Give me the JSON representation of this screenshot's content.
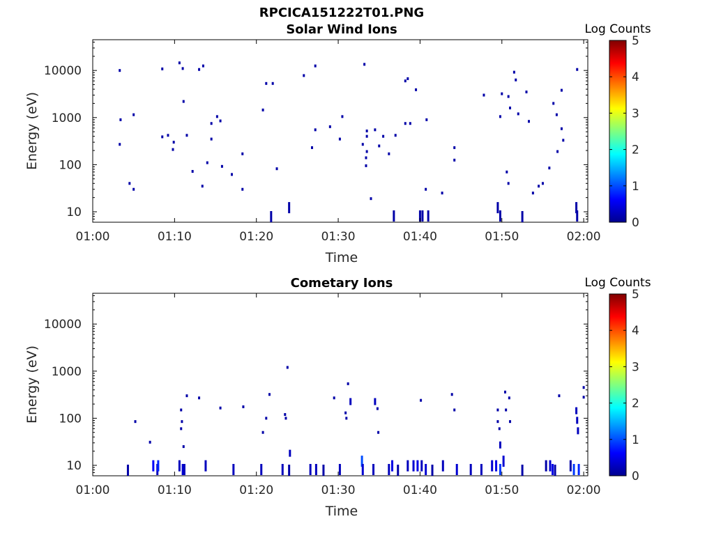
{
  "figure_title": "RPCICA151222T01.PNG",
  "chart_data": [
    {
      "type": "heatmap",
      "title": "Solar Wind Ions",
      "xlabel": "Time",
      "ylabel": "Energy (eV)",
      "x_ticks": [
        "01:00",
        "01:10",
        "01:20",
        "01:30",
        "01:40",
        "01:50",
        "02:00"
      ],
      "x_range_minutes": [
        0,
        60.5
      ],
      "y_ticks": [
        "10",
        "100",
        "1000",
        "10000"
      ],
      "y_scale": "log",
      "y_range": [
        6,
        45000
      ],
      "colorbar": {
        "label": "Log Counts",
        "ticks": [
          "0",
          "1",
          "2",
          "3",
          "4",
          "5"
        ],
        "range": [
          0,
          5
        ],
        "colormap": "jet"
      },
      "points": [
        {
          "t": 3.3,
          "e": 10000,
          "c": 0.2
        },
        {
          "t": 3.4,
          "e": 900,
          "c": 0.2
        },
        {
          "t": 3.3,
          "e": 270,
          "c": 0.2
        },
        {
          "t": 4.5,
          "e": 40,
          "c": 0.2
        },
        {
          "t": 5.0,
          "e": 30,
          "c": 0.2
        },
        {
          "t": 5.0,
          "e": 1150,
          "c": 0.2
        },
        {
          "t": 8.5,
          "e": 10800,
          "c": 0.2
        },
        {
          "t": 8.5,
          "e": 390,
          "c": 0.2
        },
        {
          "t": 9.2,
          "e": 420,
          "c": 0.2
        },
        {
          "t": 9.9,
          "e": 300,
          "c": 0.2
        },
        {
          "t": 9.8,
          "e": 210,
          "c": 0.2
        },
        {
          "t": 10.6,
          "e": 14500,
          "c": 0.2
        },
        {
          "t": 11.0,
          "e": 11000,
          "c": 0.2
        },
        {
          "t": 11.1,
          "e": 2200,
          "c": 0.2
        },
        {
          "t": 11.5,
          "e": 420,
          "c": 0.2
        },
        {
          "t": 12.2,
          "e": 72,
          "c": 0.2
        },
        {
          "t": 13.0,
          "e": 10500,
          "c": 0.2
        },
        {
          "t": 13.5,
          "e": 12500,
          "c": 0.2
        },
        {
          "t": 13.4,
          "e": 35,
          "c": 0.2
        },
        {
          "t": 14.0,
          "e": 110,
          "c": 0.2
        },
        {
          "t": 14.5,
          "e": 750,
          "c": 0.2
        },
        {
          "t": 14.5,
          "e": 350,
          "c": 0.2
        },
        {
          "t": 15.2,
          "e": 1050,
          "c": 0.2
        },
        {
          "t": 15.6,
          "e": 850,
          "c": 0.2
        },
        {
          "t": 15.8,
          "e": 92,
          "c": 0.2
        },
        {
          "t": 17.0,
          "e": 62,
          "c": 0.2
        },
        {
          "t": 18.3,
          "e": 170,
          "c": 0.2
        },
        {
          "t": 18.3,
          "e": 30,
          "c": 0.2
        },
        {
          "t": 20.8,
          "e": 1450,
          "c": 0.2
        },
        {
          "t": 21.2,
          "e": 5300,
          "c": 0.2
        },
        {
          "t": 22.0,
          "e": 5300,
          "c": 0.2
        },
        {
          "t": 22.5,
          "e": 82,
          "c": 0.2
        },
        {
          "t": 21.8,
          "e": 6,
          "c": 0.2
        },
        {
          "t": 24.0,
          "e": 15,
          "c": 0.2
        },
        {
          "t": 25.8,
          "e": 7800,
          "c": 0.2
        },
        {
          "t": 26.8,
          "e": 230,
          "c": 0.2
        },
        {
          "t": 27.2,
          "e": 12500,
          "c": 0.2
        },
        {
          "t": 27.2,
          "e": 550,
          "c": 0.2
        },
        {
          "t": 29.0,
          "e": 640,
          "c": 0.2
        },
        {
          "t": 30.2,
          "e": 350,
          "c": 0.2
        },
        {
          "t": 30.5,
          "e": 1050,
          "c": 0.2
        },
        {
          "t": 33.2,
          "e": 13500,
          "c": 0.2
        },
        {
          "t": 33.5,
          "e": 520,
          "c": 0.2
        },
        {
          "t": 33.5,
          "e": 400,
          "c": 0.2
        },
        {
          "t": 33.0,
          "e": 270,
          "c": 0.2
        },
        {
          "t": 33.5,
          "e": 190,
          "c": 0.2
        },
        {
          "t": 33.4,
          "e": 140,
          "c": 0.2
        },
        {
          "t": 33.4,
          "e": 95,
          "c": 0.2
        },
        {
          "t": 34.0,
          "e": 19,
          "c": 0.2
        },
        {
          "t": 34.5,
          "e": 550,
          "c": 0.2
        },
        {
          "t": 35.0,
          "e": 250,
          "c": 0.2
        },
        {
          "t": 35.5,
          "e": 400,
          "c": 0.2
        },
        {
          "t": 36.2,
          "e": 170,
          "c": 0.2
        },
        {
          "t": 36.8,
          "e": 10,
          "c": 0.2
        },
        {
          "t": 37.0,
          "e": 420,
          "c": 0.2
        },
        {
          "t": 38.2,
          "e": 6000,
          "c": 0.2
        },
        {
          "t": 38.5,
          "e": 6700,
          "c": 0.2
        },
        {
          "t": 38.2,
          "e": 750,
          "c": 0.2
        },
        {
          "t": 38.8,
          "e": 750,
          "c": 0.2
        },
        {
          "t": 39.5,
          "e": 3900,
          "c": 0.2
        },
        {
          "t": 40.0,
          "e": 10,
          "c": 0.2
        },
        {
          "t": 40.3,
          "e": 10,
          "c": 0.2
        },
        {
          "t": 40.7,
          "e": 30,
          "c": 0.2
        },
        {
          "t": 40.8,
          "e": 900,
          "c": 0.2
        },
        {
          "t": 41.0,
          "e": 10,
          "c": 0.2
        },
        {
          "t": 42.7,
          "e": 25,
          "c": 0.2
        },
        {
          "t": 44.2,
          "e": 230,
          "c": 0.2
        },
        {
          "t": 44.2,
          "e": 125,
          "c": 0.2
        },
        {
          "t": 47.8,
          "e": 3000,
          "c": 0.2
        },
        {
          "t": 49.5,
          "e": 15,
          "c": 0.2
        },
        {
          "t": 49.8,
          "e": 10,
          "c": 0.2
        },
        {
          "t": 49.8,
          "e": 1050,
          "c": 0.2
        },
        {
          "t": 50.0,
          "e": 3200,
          "c": 0.2
        },
        {
          "t": 50.6,
          "e": 70,
          "c": 0.2
        },
        {
          "t": 50.8,
          "e": 40,
          "c": 0.2
        },
        {
          "t": 50.8,
          "e": 2800,
          "c": 0.2
        },
        {
          "t": 51.0,
          "e": 1600,
          "c": 0.2
        },
        {
          "t": 51.5,
          "e": 9200,
          "c": 0.2
        },
        {
          "t": 51.7,
          "e": 6300,
          "c": 0.2
        },
        {
          "t": 52.0,
          "e": 1200,
          "c": 0.2
        },
        {
          "t": 52.5,
          "e": 6,
          "c": 0.2
        },
        {
          "t": 53.0,
          "e": 3500,
          "c": 0.2
        },
        {
          "t": 53.3,
          "e": 830,
          "c": 0.2
        },
        {
          "t": 53.8,
          "e": 25,
          "c": 0.2
        },
        {
          "t": 54.5,
          "e": 35,
          "c": 0.2
        },
        {
          "t": 55.0,
          "e": 40,
          "c": 0.2
        },
        {
          "t": 55.8,
          "e": 85,
          "c": 0.2
        },
        {
          "t": 56.3,
          "e": 2000,
          "c": 0.2
        },
        {
          "t": 56.7,
          "e": 1150,
          "c": 0.2
        },
        {
          "t": 56.8,
          "e": 190,
          "c": 0.2
        },
        {
          "t": 57.3,
          "e": 580,
          "c": 0.2
        },
        {
          "t": 57.5,
          "e": 330,
          "c": 0.2
        },
        {
          "t": 57.3,
          "e": 3800,
          "c": 0.2
        },
        {
          "t": 59.2,
          "e": 10500,
          "c": 0.2
        },
        {
          "t": 59.1,
          "e": 15,
          "c": 0.2
        },
        {
          "t": 59.2,
          "e": 10,
          "c": 0.2
        }
      ]
    },
    {
      "type": "heatmap",
      "title": "Cometary Ions",
      "xlabel": "Time",
      "ylabel": "Energy (eV)",
      "x_ticks": [
        "01:00",
        "01:10",
        "01:20",
        "01:30",
        "01:40",
        "01:50",
        "02:00"
      ],
      "x_range_minutes": [
        0,
        60.5
      ],
      "y_ticks": [
        "10",
        "100",
        "1000",
        "10000"
      ],
      "y_scale": "log",
      "y_range": [
        6,
        45000
      ],
      "colorbar": {
        "label": "Log Counts",
        "ticks": [
          "0",
          "1",
          "2",
          "3",
          "4",
          "5"
        ],
        "range": [
          0,
          5
        ],
        "colormap": "jet"
      },
      "points": [
        {
          "t": 4.3,
          "e": 6,
          "c": 0.2
        },
        {
          "t": 5.2,
          "e": 85,
          "c": 0.2
        },
        {
          "t": 7.0,
          "e": 31,
          "c": 0.2
        },
        {
          "t": 7.4,
          "e": 12,
          "c": 0.6
        },
        {
          "t": 7.9,
          "e": 10,
          "c": 0.3
        },
        {
          "t": 8.0,
          "e": 12,
          "c": 0.8
        },
        {
          "t": 10.6,
          "e": 12,
          "c": 0.3
        },
        {
          "t": 10.8,
          "e": 150,
          "c": 0.2
        },
        {
          "t": 10.9,
          "e": 85,
          "c": 0.2
        },
        {
          "t": 10.8,
          "e": 60,
          "c": 0.2
        },
        {
          "t": 11.1,
          "e": 25,
          "c": 0.2
        },
        {
          "t": 11.0,
          "e": 10,
          "c": 0.4
        },
        {
          "t": 11.2,
          "e": 10,
          "c": 0.3
        },
        {
          "t": 11.5,
          "e": 300,
          "c": 0.2
        },
        {
          "t": 13.0,
          "e": 270,
          "c": 0.2
        },
        {
          "t": 13.8,
          "e": 12,
          "c": 0.3
        },
        {
          "t": 15.6,
          "e": 165,
          "c": 0.2
        },
        {
          "t": 17.2,
          "e": 10,
          "c": 0.3
        },
        {
          "t": 18.4,
          "e": 175,
          "c": 0.2
        },
        {
          "t": 20.6,
          "e": 10,
          "c": 0.3
        },
        {
          "t": 20.8,
          "e": 50,
          "c": 0.2
        },
        {
          "t": 21.2,
          "e": 100,
          "c": 0.2
        },
        {
          "t": 21.6,
          "e": 320,
          "c": 0.2
        },
        {
          "t": 23.2,
          "e": 10,
          "c": 0.3
        },
        {
          "t": 23.5,
          "e": 120,
          "c": 0.2
        },
        {
          "t": 23.6,
          "e": 100,
          "c": 0.2
        },
        {
          "t": 23.8,
          "e": 1200,
          "c": 0.2
        },
        {
          "t": 24.1,
          "e": 20,
          "c": 0.3
        },
        {
          "t": 24.0,
          "e": 6,
          "c": 0.2
        },
        {
          "t": 26.6,
          "e": 10,
          "c": 0.3
        },
        {
          "t": 27.3,
          "e": 10,
          "c": 0.3
        },
        {
          "t": 28.2,
          "e": 6,
          "c": 0.2
        },
        {
          "t": 29.5,
          "e": 270,
          "c": 0.2
        },
        {
          "t": 30.2,
          "e": 10,
          "c": 0.3
        },
        {
          "t": 30.9,
          "e": 130,
          "c": 0.2
        },
        {
          "t": 31.0,
          "e": 100,
          "c": 0.2
        },
        {
          "t": 31.2,
          "e": 540,
          "c": 0.2
        },
        {
          "t": 31.5,
          "e": 250,
          "c": 0.3
        },
        {
          "t": 32.9,
          "e": 15,
          "c": 1.0
        },
        {
          "t": 33.0,
          "e": 10,
          "c": 0.4
        },
        {
          "t": 34.3,
          "e": 10,
          "c": 0.3
        },
        {
          "t": 34.5,
          "e": 250,
          "c": 0.3
        },
        {
          "t": 34.8,
          "e": 160,
          "c": 0.2
        },
        {
          "t": 34.9,
          "e": 50,
          "c": 0.2
        },
        {
          "t": 36.2,
          "e": 10,
          "c": 0.3
        },
        {
          "t": 36.6,
          "e": 12,
          "c": 0.5
        },
        {
          "t": 37.3,
          "e": 6,
          "c": 0.2
        },
        {
          "t": 38.5,
          "e": 12,
          "c": 0.3
        },
        {
          "t": 39.2,
          "e": 12,
          "c": 0.4
        },
        {
          "t": 39.7,
          "e": 12,
          "c": 0.5
        },
        {
          "t": 40.2,
          "e": 12,
          "c": 0.3
        },
        {
          "t": 40.1,
          "e": 240,
          "c": 0.2
        },
        {
          "t": 40.7,
          "e": 10,
          "c": 0.4
        },
        {
          "t": 41.5,
          "e": 6,
          "c": 0.2
        },
        {
          "t": 42.8,
          "e": 12,
          "c": 0.3
        },
        {
          "t": 43.9,
          "e": 320,
          "c": 0.2
        },
        {
          "t": 44.2,
          "e": 150,
          "c": 0.2
        },
        {
          "t": 44.5,
          "e": 10,
          "c": 0.4
        },
        {
          "t": 46.2,
          "e": 10,
          "c": 0.3
        },
        {
          "t": 47.5,
          "e": 10,
          "c": 0.3
        },
        {
          "t": 48.8,
          "e": 12,
          "c": 0.4
        },
        {
          "t": 49.3,
          "e": 12,
          "c": 0.5
        },
        {
          "t": 49.5,
          "e": 150,
          "c": 0.2
        },
        {
          "t": 49.5,
          "e": 85,
          "c": 0.2
        },
        {
          "t": 49.7,
          "e": 60,
          "c": 0.2
        },
        {
          "t": 49.8,
          "e": 30,
          "c": 0.3
        },
        {
          "t": 49.8,
          "e": 10,
          "c": 0.9
        },
        {
          "t": 50.2,
          "e": 15,
          "c": 0.4
        },
        {
          "t": 50.4,
          "e": 360,
          "c": 0.2
        },
        {
          "t": 50.5,
          "e": 150,
          "c": 0.2
        },
        {
          "t": 50.9,
          "e": 270,
          "c": 0.2
        },
        {
          "t": 51.0,
          "e": 85,
          "c": 0.2
        },
        {
          "t": 52.5,
          "e": 6,
          "c": 0.2
        },
        {
          "t": 55.4,
          "e": 12,
          "c": 0.2
        },
        {
          "t": 55.9,
          "e": 12,
          "c": 0.4
        },
        {
          "t": 56.2,
          "e": 10,
          "c": 0.5
        },
        {
          "t": 56.5,
          "e": 6,
          "c": 0.2
        },
        {
          "t": 57.0,
          "e": 300,
          "c": 0.2
        },
        {
          "t": 58.4,
          "e": 12,
          "c": 0.2
        },
        {
          "t": 58.8,
          "e": 10,
          "c": 0.9
        },
        {
          "t": 59.1,
          "e": 160,
          "c": 0.3
        },
        {
          "t": 59.2,
          "e": 100,
          "c": 0.3
        },
        {
          "t": 59.3,
          "e": 60,
          "c": 0.3
        },
        {
          "t": 59.4,
          "e": 10,
          "c": 0.8
        },
        {
          "t": 60.0,
          "e": 450,
          "c": 0.2
        },
        {
          "t": 60.0,
          "e": 280,
          "c": 0.2
        }
      ]
    }
  ]
}
